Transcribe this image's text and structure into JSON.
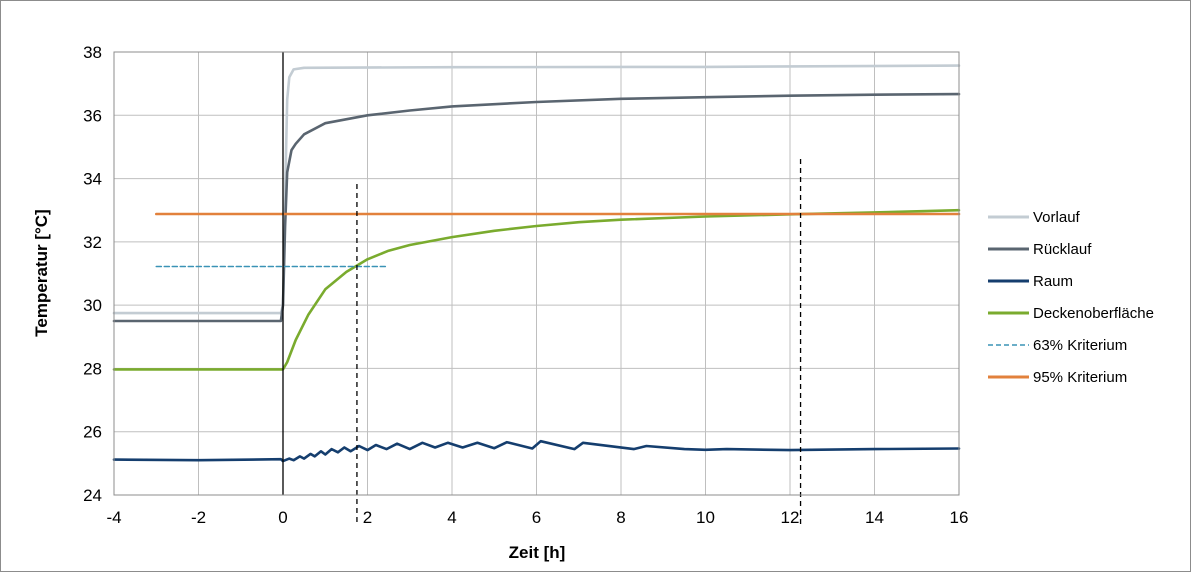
{
  "chart_data": {
    "type": "line",
    "xlabel": "Zeit [h]",
    "ylabel": "Temperatur [°C]",
    "xlim": [
      -4,
      16
    ],
    "ylim": [
      24,
      38
    ],
    "xticks": [
      -4,
      -2,
      0,
      2,
      4,
      6,
      8,
      10,
      12,
      14,
      16
    ],
    "yticks": [
      24,
      26,
      28,
      30,
      32,
      34,
      36,
      38
    ],
    "grid": true,
    "legend_position": "right",
    "series": [
      {
        "name": "Vorlauf",
        "color": "#c3ccd3",
        "style": "solid",
        "points": [
          [
            -4,
            29.75
          ],
          [
            -0.05,
            29.75
          ],
          [
            0.0,
            30.0
          ],
          [
            0.05,
            33.5
          ],
          [
            0.1,
            36.5
          ],
          [
            0.15,
            37.2
          ],
          [
            0.25,
            37.45
          ],
          [
            0.5,
            37.5
          ],
          [
            4,
            37.52
          ],
          [
            10,
            37.53
          ],
          [
            16,
            37.57
          ]
        ]
      },
      {
        "name": "Rücklauf",
        "color": "#5a6570",
        "style": "solid",
        "points": [
          [
            -4,
            29.5
          ],
          [
            -0.05,
            29.5
          ],
          [
            0.0,
            30.0
          ],
          [
            0.05,
            32.5
          ],
          [
            0.1,
            34.2
          ],
          [
            0.2,
            34.9
          ],
          [
            0.3,
            35.1
          ],
          [
            0.5,
            35.4
          ],
          [
            1,
            35.75
          ],
          [
            2,
            36.0
          ],
          [
            3,
            36.15
          ],
          [
            4,
            36.28
          ],
          [
            6,
            36.42
          ],
          [
            8,
            36.52
          ],
          [
            10,
            36.57
          ],
          [
            12,
            36.62
          ],
          [
            14,
            36.65
          ],
          [
            16,
            36.67
          ]
        ]
      },
      {
        "name": "Raum",
        "color": "#153e6e",
        "style": "solid",
        "points": [
          [
            -4,
            25.12
          ],
          [
            -2,
            25.1
          ],
          [
            -0.05,
            25.13
          ],
          [
            0.0,
            25.07
          ],
          [
            0.15,
            25.15
          ],
          [
            0.25,
            25.1
          ],
          [
            0.4,
            25.22
          ],
          [
            0.5,
            25.15
          ],
          [
            0.65,
            25.3
          ],
          [
            0.75,
            25.22
          ],
          [
            0.9,
            25.38
          ],
          [
            1.0,
            25.28
          ],
          [
            1.15,
            25.45
          ],
          [
            1.3,
            25.35
          ],
          [
            1.45,
            25.5
          ],
          [
            1.6,
            25.38
          ],
          [
            1.8,
            25.55
          ],
          [
            2.0,
            25.42
          ],
          [
            2.2,
            25.58
          ],
          [
            2.45,
            25.45
          ],
          [
            2.7,
            25.62
          ],
          [
            3.0,
            25.45
          ],
          [
            3.3,
            25.65
          ],
          [
            3.6,
            25.5
          ],
          [
            3.9,
            25.65
          ],
          [
            4.25,
            25.5
          ],
          [
            4.6,
            25.65
          ],
          [
            5.0,
            25.48
          ],
          [
            5.3,
            25.67
          ],
          [
            5.9,
            25.47
          ],
          [
            6.1,
            25.7
          ],
          [
            6.9,
            25.45
          ],
          [
            7.1,
            25.65
          ],
          [
            8.3,
            25.45
          ],
          [
            8.6,
            25.55
          ],
          [
            9.5,
            25.45
          ],
          [
            10.0,
            25.43
          ],
          [
            10.5,
            25.45
          ],
          [
            12,
            25.42
          ],
          [
            14,
            25.45
          ],
          [
            16,
            25.47
          ]
        ]
      },
      {
        "name": "Deckenoberfläche",
        "color": "#7aab2e",
        "style": "solid",
        "points": [
          [
            -4,
            27.97
          ],
          [
            0,
            27.97
          ],
          [
            0.1,
            28.2
          ],
          [
            0.3,
            28.9
          ],
          [
            0.6,
            29.7
          ],
          [
            1.0,
            30.5
          ],
          [
            1.5,
            31.05
          ],
          [
            2.0,
            31.45
          ],
          [
            2.5,
            31.72
          ],
          [
            3.0,
            31.9
          ],
          [
            4.0,
            32.15
          ],
          [
            5.0,
            32.35
          ],
          [
            6.0,
            32.5
          ],
          [
            7.0,
            32.62
          ],
          [
            8.0,
            32.7
          ],
          [
            10.0,
            32.8
          ],
          [
            12.0,
            32.87
          ],
          [
            14.0,
            32.93
          ],
          [
            16.0,
            33.0
          ]
        ]
      },
      {
        "name": "63% Kriterium",
        "color": "#3a93b6",
        "style": "dashed",
        "points": [
          [
            -3,
            31.22
          ],
          [
            2.45,
            31.22
          ]
        ]
      },
      {
        "name": "95% Kriterium",
        "color": "#e2813c",
        "style": "solid",
        "points": [
          [
            -3,
            32.88
          ],
          [
            16,
            32.88
          ]
        ]
      }
    ],
    "vertical_markers": [
      {
        "x": 0,
        "style": "solid"
      },
      {
        "x": 1.75,
        "style": "dashed"
      },
      {
        "x": 12.25,
        "style": "dashed"
      }
    ]
  }
}
